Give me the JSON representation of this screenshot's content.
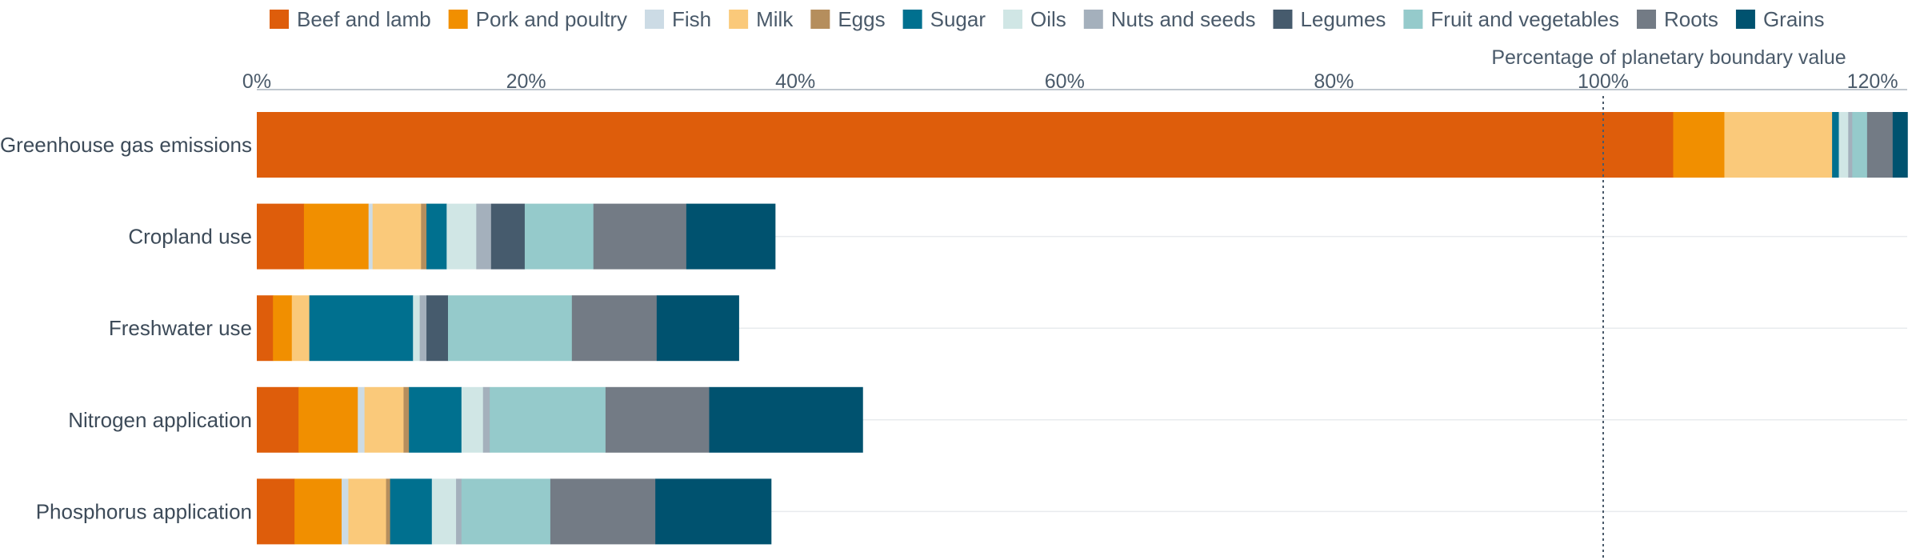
{
  "chart_data": {
    "type": "bar",
    "orientation": "horizontal",
    "stacked": true,
    "title": "",
    "xlabel": "",
    "ylabel": "",
    "x_tick_labels": [
      "0%",
      "20%",
      "40%",
      "60%",
      "80%",
      "100%",
      "120%"
    ],
    "x_ticks": [
      0,
      20,
      40,
      60,
      80,
      100,
      120
    ],
    "xlim": [
      0,
      122.5
    ],
    "legend_position": "top",
    "grid": "horizontal lines at each category",
    "reference_line": {
      "value": 100,
      "label": "Percentage of planetary boundary value",
      "style": "dotted"
    },
    "categories": [
      "Greenhouse gas emissions",
      "Cropland use",
      "Freshwater use",
      "Nitrogen application",
      "Phosphorus application"
    ],
    "series": [
      {
        "name": "Beef and lamb",
        "color": "#de5d0b",
        "values": [
          105.2,
          3.5,
          1.2,
          3.1,
          2.8
        ]
      },
      {
        "name": "Pork and poultry",
        "color": "#f18f00",
        "values": [
          3.8,
          4.8,
          1.4,
          4.4,
          3.5
        ]
      },
      {
        "name": "Fish",
        "color": "#ccdbe5",
        "values": [
          0.0,
          0.3,
          0.0,
          0.5,
          0.5
        ]
      },
      {
        "name": "Milk",
        "color": "#fac97a",
        "values": [
          8.0,
          3.6,
          1.3,
          2.9,
          2.8
        ]
      },
      {
        "name": "Eggs",
        "color": "#b58e5d",
        "values": [
          0.0,
          0.4,
          0.0,
          0.4,
          0.3
        ]
      },
      {
        "name": "Sugar",
        "color": "#00708f",
        "values": [
          0.5,
          1.5,
          7.7,
          3.9,
          3.1
        ]
      },
      {
        "name": "Oils",
        "color": "#d0e6e5",
        "values": [
          0.7,
          2.2,
          0.5,
          1.6,
          1.8
        ]
      },
      {
        "name": "Nuts and seeds",
        "color": "#a4b0bc",
        "values": [
          0.3,
          1.1,
          0.5,
          0.5,
          0.4
        ]
      },
      {
        "name": "Legumes",
        "color": "#465b6d",
        "values": [
          0.0,
          2.5,
          1.6,
          0.0,
          0.0
        ]
      },
      {
        "name": "Fruit and vegetables",
        "color": "#95cacb",
        "values": [
          1.1,
          5.1,
          9.2,
          8.6,
          6.6
        ]
      },
      {
        "name": "Roots",
        "color": "#737b85",
        "values": [
          1.9,
          6.9,
          6.3,
          7.7,
          7.8
        ]
      },
      {
        "name": "Grains",
        "color": "#00526f",
        "values": [
          1.1,
          6.6,
          6.1,
          11.4,
          8.6
        ]
      }
    ]
  }
}
